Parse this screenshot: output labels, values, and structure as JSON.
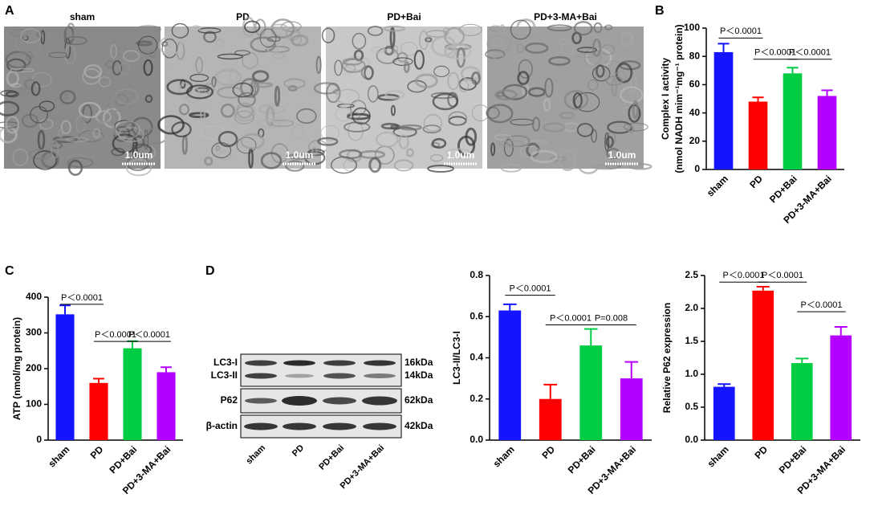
{
  "panels": [
    "A",
    "B",
    "C",
    "D"
  ],
  "micrographs": {
    "titles": [
      "sham",
      "PD",
      "PD+Bai",
      "PD+3-MA+Bai"
    ],
    "scale_bar": "1.0um"
  },
  "blot": {
    "rows": [
      "LC3-I",
      "LC3-II",
      "P62",
      "β-actin"
    ],
    "sizes": [
      "16kDa",
      "14kDa",
      "62kDa",
      "42kDa"
    ],
    "lanes": [
      "sham",
      "PD",
      "PD+Bai",
      "PD+3-MA+Bai"
    ]
  },
  "chart_data": [
    {
      "type": "bar",
      "y_label": [
        "Complex I activity",
        "(nmol NADH mim⁻¹mg⁻¹ protein)"
      ],
      "categories": [
        "sham",
        "PD",
        "PD+Bai",
        "PD+3-MA+Bai"
      ],
      "values": [
        83,
        48,
        68,
        52
      ],
      "errors": [
        6,
        3,
        4,
        4
      ],
      "colors": [
        "#1414ff",
        "#ff0000",
        "#00cc44",
        "#b400ff"
      ],
      "ylim": [
        0,
        100
      ],
      "yticks": [
        0,
        20,
        40,
        60,
        80,
        100
      ],
      "annotations": [
        "P＜0.0001",
        "P＜0.0001",
        "P＜0.0001"
      ]
    },
    {
      "type": "bar",
      "y_label": "ATP (nmol/mg protein)",
      "categories": [
        "sham",
        "PD",
        "PD+Bai",
        "PD+3-MA+Bai"
      ],
      "values": [
        352,
        160,
        257,
        190
      ],
      "errors": [
        25,
        12,
        20,
        14
      ],
      "colors": [
        "#1414ff",
        "#ff0000",
        "#00cc44",
        "#b400ff"
      ],
      "ylim": [
        0,
        400
      ],
      "yticks": [
        0,
        100,
        200,
        300,
        400
      ],
      "annotations": [
        "P＜0.0001",
        "P＜0.0001",
        "P＜0.0001"
      ]
    },
    {
      "type": "bar",
      "y_label": "LC3-II/LC3-I",
      "categories": [
        "sham",
        "PD",
        "PD+Bai",
        "PD+3-MA+Bai"
      ],
      "values": [
        0.63,
        0.2,
        0.46,
        0.3
      ],
      "errors": [
        0.03,
        0.07,
        0.08,
        0.08
      ],
      "colors": [
        "#1414ff",
        "#ff0000",
        "#00cc44",
        "#b400ff"
      ],
      "ylim": [
        0,
        0.8
      ],
      "yticks": [
        {
          "value": 0,
          "label": "0.0"
        },
        0.2,
        0.4,
        0.6,
        0.8
      ],
      "annotations": [
        "P＜0.0001",
        "P＜0.0001",
        "P=0.008"
      ]
    },
    {
      "type": "bar",
      "y_label": "Relative P62 expression",
      "categories": [
        "sham",
        "PD",
        "PD+Bai",
        "PD+3-MA+Bai"
      ],
      "values": [
        0.81,
        2.27,
        1.17,
        1.59
      ],
      "errors": [
        0.04,
        0.06,
        0.07,
        0.13
      ],
      "colors": [
        "#1414ff",
        "#ff0000",
        "#00cc44",
        "#b400ff"
      ],
      "ylim": [
        0,
        2.5
      ],
      "yticks": [
        {
          "value": 0,
          "label": "0.0"
        },
        0.5,
        {
          "value": 1,
          "label": "1.0"
        },
        1.5,
        {
          "value": 2,
          "label": "2.0"
        },
        2.5
      ],
      "annotations": [
        "P＜0.0001",
        "P＜0.0001",
        "P＜0.0001"
      ]
    }
  ]
}
